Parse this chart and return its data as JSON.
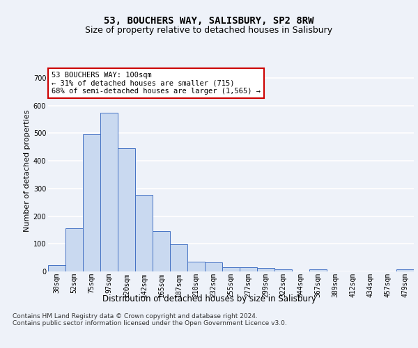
{
  "title1": "53, BOUCHERS WAY, SALISBURY, SP2 8RW",
  "title2": "Size of property relative to detached houses in Salisbury",
  "xlabel": "Distribution of detached houses by size in Salisbury",
  "ylabel": "Number of detached properties",
  "categories": [
    "30sqm",
    "52sqm",
    "75sqm",
    "97sqm",
    "120sqm",
    "142sqm",
    "165sqm",
    "187sqm",
    "210sqm",
    "232sqm",
    "255sqm",
    "277sqm",
    "299sqm",
    "322sqm",
    "344sqm",
    "367sqm",
    "389sqm",
    "412sqm",
    "434sqm",
    "457sqm",
    "479sqm"
  ],
  "values": [
    22,
    155,
    497,
    575,
    445,
    277,
    145,
    98,
    35,
    32,
    15,
    15,
    12,
    7,
    0,
    7,
    0,
    0,
    0,
    0,
    7
  ],
  "bar_color": "#c9d9f0",
  "bar_edge_color": "#4472c4",
  "annotation_text": "53 BOUCHERS WAY: 100sqm\n← 31% of detached houses are smaller (715)\n68% of semi-detached houses are larger (1,565) →",
  "annotation_box_color": "#ffffff",
  "annotation_box_edge_color": "#cc0000",
  "ylim": [
    0,
    730
  ],
  "yticks": [
    0,
    100,
    200,
    300,
    400,
    500,
    600,
    700
  ],
  "footer_text": "Contains HM Land Registry data © Crown copyright and database right 2024.\nContains public sector information licensed under the Open Government Licence v3.0.",
  "background_color": "#eef2f9",
  "plot_background_color": "#eef2f9",
  "grid_color": "#ffffff",
  "title1_fontsize": 10,
  "title2_fontsize": 9,
  "xlabel_fontsize": 8.5,
  "ylabel_fontsize": 8,
  "tick_fontsize": 7,
  "annotation_fontsize": 7.5,
  "footer_fontsize": 6.5
}
